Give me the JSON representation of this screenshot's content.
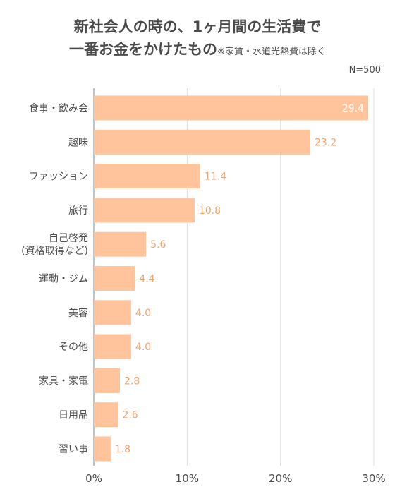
{
  "chart_data": {
    "type": "bar",
    "orientation": "horizontal",
    "title_line1": "新社会人の時の、1ヶ月間の生活費で",
    "title_line2": "一番お金をかけたもの",
    "title_note": "※家賃・水道光熱費は除く",
    "sample_size": "N=500",
    "categories": [
      [
        "食事・飲み会"
      ],
      [
        "趣味"
      ],
      [
        "ファッション"
      ],
      [
        "旅行"
      ],
      [
        "自己啓発",
        "(資格取得など)"
      ],
      [
        "運動・ジム"
      ],
      [
        "美容"
      ],
      [
        "その他"
      ],
      [
        "家具・家電"
      ],
      [
        "日用品"
      ],
      [
        "習い事"
      ]
    ],
    "values": [
      29.4,
      23.2,
      11.4,
      10.8,
      5.6,
      4.4,
      4.0,
      4.0,
      2.8,
      2.6,
      1.8
    ],
    "value_labels": [
      "29.4",
      "23.2",
      "11.4",
      "10.8",
      "5.6",
      "4.4",
      "4.0",
      "4.0",
      "2.8",
      "2.6",
      "1.8"
    ],
    "xlim": [
      0,
      30
    ],
    "xticks": [
      0,
      10,
      20,
      30
    ],
    "xtick_labels": [
      "0%",
      "10%",
      "20%",
      "30%"
    ],
    "grid": true,
    "bar_color": "#ffc49c",
    "value_label_color": "#f1a36e",
    "inside_label_color": "#ffffff"
  }
}
